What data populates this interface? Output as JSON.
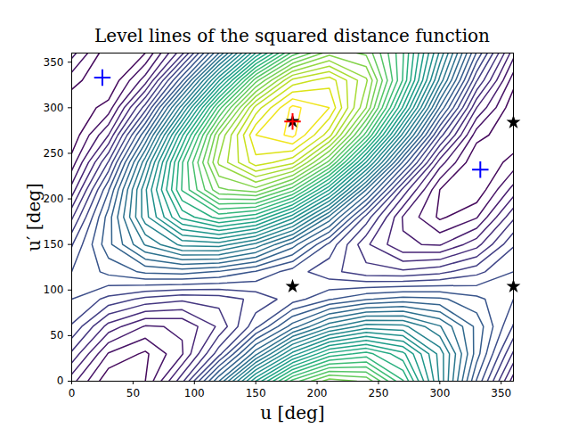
{
  "chart_data": {
    "type": "contour",
    "title": "Level lines of the squared distance function",
    "x_label": "u [deg]",
    "y_label": "u′ [deg]",
    "xlim": [
      0,
      360
    ],
    "ylim": [
      0,
      360
    ],
    "xticks": [
      0,
      50,
      100,
      150,
      200,
      250,
      300,
      350
    ],
    "yticks": [
      0,
      50,
      100,
      150,
      200,
      250,
      300,
      350
    ],
    "grid": false,
    "color": "viridis",
    "x": [
      0,
      30,
      60,
      90,
      120,
      150,
      180,
      210,
      240,
      270,
      300,
      330,
      360
    ],
    "y": [
      0,
      30,
      60,
      90,
      120,
      150,
      180,
      210,
      240,
      270,
      300,
      330,
      360
    ],
    "z": [
      [
        0.44,
        0.12,
        0.2,
        0.67,
        1.4,
        2.2,
        2.84,
        3.16,
        3.08,
        2.61,
        1.88,
        1.09,
        0.44
      ],
      [
        0.68,
        0.29,
        0.18,
        0.39,
        0.86,
        1.47,
        2.04,
        2.43,
        2.54,
        2.33,
        1.86,
        1.25,
        0.68
      ],
      [
        0.89,
        0.56,
        0.39,
        0.41,
        0.62,
        0.97,
        1.35,
        1.67,
        1.85,
        1.83,
        1.61,
        1.27,
        0.89
      ],
      [
        1.0,
        0.87,
        0.77,
        0.72,
        0.74,
        0.83,
        0.95,
        1.09,
        1.19,
        1.24,
        1.22,
        1.13,
        1.0
      ],
      [
        1.0,
        1.13,
        1.22,
        1.24,
        1.19,
        1.09,
        0.95,
        0.83,
        0.74,
        0.72,
        0.77,
        0.87,
        1.0
      ],
      [
        0.89,
        1.27,
        1.61,
        1.83,
        1.85,
        1.67,
        1.35,
        0.97,
        0.62,
        0.41,
        0.39,
        0.56,
        0.89
      ],
      [
        0.68,
        1.25,
        1.86,
        2.33,
        2.54,
        2.43,
        2.04,
        1.47,
        0.86,
        0.39,
        0.18,
        0.29,
        0.68
      ],
      [
        0.44,
        1.09,
        1.88,
        2.61,
        3.08,
        3.16,
        2.84,
        2.2,
        1.4,
        0.67,
        0.2,
        0.12,
        0.44
      ],
      [
        0.24,
        0.81,
        1.67,
        2.59,
        3.32,
        3.66,
        3.53,
        2.96,
        2.09,
        1.18,
        0.45,
        0.1,
        0.24
      ],
      [
        0.12,
        0.5,
        1.29,
        2.28,
        3.2,
        3.8,
        3.93,
        3.54,
        2.75,
        1.76,
        0.85,
        0.24,
        0.12
      ],
      [
        0.12,
        0.24,
        0.85,
        1.76,
        2.75,
        3.54,
        3.93,
        3.8,
        3.2,
        2.28,
        1.29,
        0.5,
        0.12
      ],
      [
        0.24,
        0.1,
        0.45,
        1.18,
        2.09,
        2.96,
        3.53,
        3.66,
        3.32,
        2.59,
        1.67,
        0.81,
        0.24
      ],
      [
        0.44,
        0.12,
        0.2,
        0.67,
        1.4,
        2.2,
        2.84,
        3.16,
        3.08,
        2.61,
        1.88,
        1.09,
        0.44
      ]
    ],
    "markers": [
      {
        "marker": "star",
        "color": "#000000",
        "x": [
          180,
          180,
          360,
          360
        ],
        "y": [
          285,
          104,
          284,
          104
        ]
      },
      {
        "marker": "plus",
        "color": "#0000ff",
        "x": [
          25,
          333
        ],
        "y": [
          333,
          232
        ]
      },
      {
        "marker": "plus",
        "color": "#ff0000",
        "x": [
          180
        ],
        "y": [
          285
        ]
      }
    ]
  }
}
